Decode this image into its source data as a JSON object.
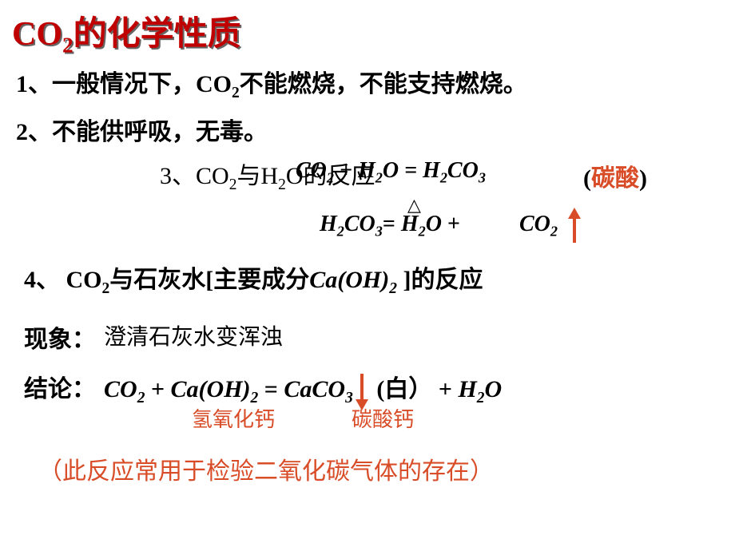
{
  "title": {
    "prefix": "CO",
    "sub": "2",
    "suffix": "的化学性质",
    "color": "#c00000"
  },
  "point1": {
    "prefix": "1、一般情况下，CO",
    "sub": "2",
    "suffix": "不能燃烧，不能支持燃烧。"
  },
  "point2": "2、不能供呼吸，无毒。",
  "point3": {
    "label_prefix": "3、CO",
    "label_sub": "2",
    "label_mid": "与H",
    "label_sub2": "2",
    "label_suffix": "O的反应",
    "eq_part1": "CO",
    "eq_sub1": "2",
    "eq_plus": " + ",
    "eq_part2": "H",
    "eq_sub2": "2",
    "eq_part3": "O  = H",
    "eq_sub3": "2",
    "eq_part4": "CO",
    "eq_sub4": "3",
    "paren_open": "(",
    "carbonic_acid": "碳酸",
    "paren_close": ")"
  },
  "eq_decompose": {
    "p1": "H",
    "s1": "2",
    "p2": "CO",
    "s2": "3",
    "eq": "=  ",
    "p3": "H",
    "s3": "2",
    "p4": "O",
    "plus": "+",
    "p5": "CO",
    "s5": "2",
    "triangle": "△"
  },
  "point4": {
    "prefix": "4、 CO",
    "sub": "2",
    "mid": "与石灰水[主要成分",
    "caoh": "Ca(OH)",
    "caoh_sub": "2",
    "suffix": " ]的反应"
  },
  "phenomenon_label": "现象：",
  "phenomenon_text": "澄清石灰水变浑浊",
  "conclusion_label": "结论：",
  "conclusion_eq": {
    "p1": "CO",
    "s1": "2",
    "plus1": "  + ",
    "p2": "Ca(OH)",
    "s2": "2",
    "eq": "  =  ",
    "p3": "CaCO",
    "s3": "3",
    "white": " (白）",
    "plus2": "  + ",
    "p4": "H",
    "s4": "2",
    "p5": "O"
  },
  "label_caoh": "氢氧化钙",
  "label_caco3": "碳酸钙",
  "note": "（此反应常用于检验二氧化碳气体的存在）",
  "colors": {
    "title": "#c00000",
    "accent": "#d94c28",
    "text": "#000000",
    "bg": "#ffffff"
  }
}
